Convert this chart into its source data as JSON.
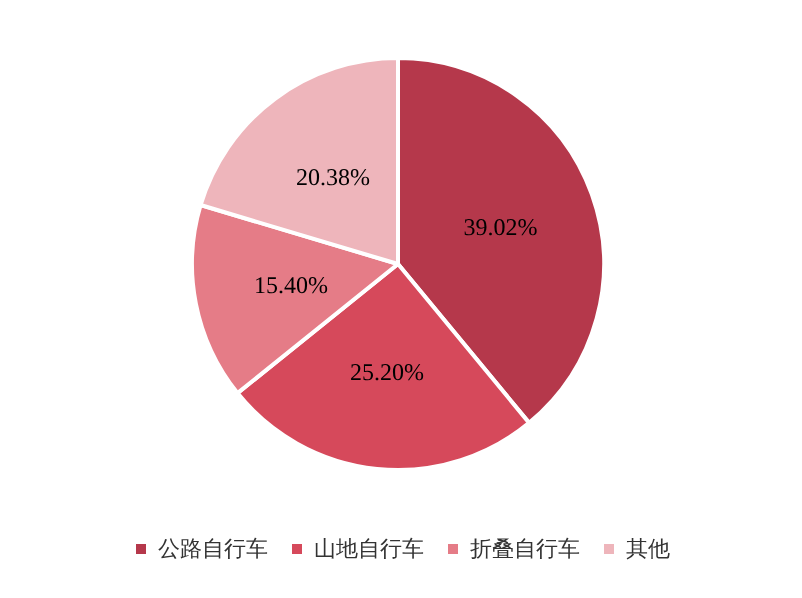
{
  "chart_data": {
    "type": "pie",
    "categories": [
      "公路自行车",
      "山地自行车",
      "折叠自行车",
      "其他"
    ],
    "values": [
      39.02,
      25.2,
      15.4,
      20.38
    ],
    "value_labels": [
      "39.02%",
      "25.20%",
      "15.40%",
      "20.38%"
    ],
    "colors": [
      "#b5384b",
      "#d6495b",
      "#e57c87",
      "#eeb5bb"
    ],
    "legend": "bottom"
  }
}
